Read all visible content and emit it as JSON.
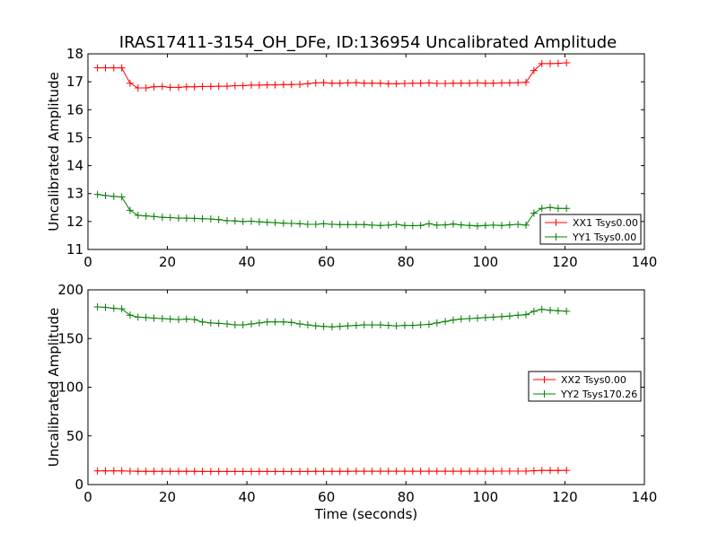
{
  "figure": {
    "title": "IRAS17411-3154_OH_DFe, ID:136954 Uncalibrated Amplitude"
  },
  "chart_data": [
    {
      "type": "line",
      "title": "IRAS17411-3154_OH_DFe, ID:136954 Uncalibrated Amplitude",
      "xlabel": "",
      "ylabel": "Uncalibrated Amplitude",
      "xlim": [
        0,
        140
      ],
      "ylim": [
        11,
        18
      ],
      "xticks": [
        0,
        20,
        40,
        60,
        80,
        100,
        120,
        140
      ],
      "yticks": [
        11,
        12,
        13,
        14,
        15,
        16,
        17,
        18
      ],
      "grid": false,
      "legend": "lower-right",
      "x": [
        2.4,
        4.4,
        6.5,
        8.5,
        10.6,
        12.6,
        14.6,
        16.6,
        18.7,
        20.7,
        22.8,
        24.8,
        26.8,
        28.8,
        30.9,
        32.9,
        35.0,
        37.0,
        39.0,
        41.1,
        43.1,
        45.1,
        47.1,
        49.2,
        51.2,
        53.3,
        55.3,
        57.3,
        59.3,
        61.4,
        63.4,
        65.4,
        67.5,
        69.5,
        71.5,
        73.6,
        75.6,
        77.6,
        79.7,
        81.7,
        83.7,
        85.8,
        87.8,
        89.9,
        91.9,
        93.9,
        96.0,
        98.0,
        100.0,
        102.0,
        104.1,
        106.1,
        108.2,
        110.2,
        112.2,
        114.2,
        116.3,
        118.3,
        120.4
      ],
      "series": [
        {
          "name": "XX1 Tsys0.00",
          "color": "#ff0000",
          "values": [
            17.5,
            17.5,
            17.5,
            17.5,
            16.95,
            16.78,
            16.78,
            16.82,
            16.83,
            16.8,
            16.8,
            16.82,
            16.82,
            16.83,
            16.83,
            16.84,
            16.84,
            16.86,
            16.86,
            16.88,
            16.88,
            16.89,
            16.89,
            16.9,
            16.9,
            16.91,
            16.93,
            16.96,
            16.97,
            16.95,
            16.95,
            16.96,
            16.97,
            16.95,
            16.95,
            16.95,
            16.93,
            16.93,
            16.94,
            16.95,
            16.95,
            16.96,
            16.94,
            16.94,
            16.95,
            16.95,
            16.95,
            16.96,
            16.95,
            16.95,
            16.96,
            16.96,
            16.97,
            16.98,
            17.4,
            17.65,
            17.65,
            17.66,
            17.68
          ]
        },
        {
          "name": "YY1 Tsys0.00",
          "color": "#008000",
          "values": [
            12.97,
            12.93,
            12.9,
            12.88,
            12.4,
            12.22,
            12.2,
            12.18,
            12.15,
            12.14,
            12.12,
            12.12,
            12.11,
            12.1,
            12.09,
            12.07,
            12.03,
            12.02,
            12.0,
            12.01,
            11.99,
            11.97,
            11.96,
            11.94,
            11.93,
            11.92,
            11.9,
            11.9,
            11.92,
            11.9,
            11.89,
            11.89,
            11.89,
            11.89,
            11.87,
            11.86,
            11.87,
            11.9,
            11.86,
            11.85,
            11.86,
            11.92,
            11.87,
            11.88,
            11.91,
            11.88,
            11.86,
            11.84,
            11.86,
            11.87,
            11.86,
            11.88,
            11.9,
            11.87,
            12.3,
            12.47,
            12.5,
            12.47,
            12.47
          ]
        }
      ]
    },
    {
      "type": "line",
      "title": "",
      "xlabel": "Time (seconds)",
      "ylabel": "Uncalibrated Amplitude",
      "xlim": [
        0,
        140
      ],
      "ylim": [
        0,
        200
      ],
      "xticks": [
        0,
        20,
        40,
        60,
        80,
        100,
        120,
        140
      ],
      "yticks": [
        0,
        50,
        100,
        150,
        200
      ],
      "grid": false,
      "legend": "center-right",
      "x": [
        2.4,
        4.4,
        6.5,
        8.5,
        10.6,
        12.6,
        14.6,
        16.6,
        18.7,
        20.7,
        22.8,
        24.8,
        26.8,
        28.8,
        30.9,
        32.9,
        35.0,
        37.0,
        39.0,
        41.1,
        43.1,
        45.1,
        47.1,
        49.2,
        51.2,
        53.3,
        55.3,
        57.3,
        59.3,
        61.4,
        63.4,
        65.4,
        67.5,
        69.5,
        71.5,
        73.6,
        75.6,
        77.6,
        79.7,
        81.7,
        83.7,
        85.8,
        87.8,
        89.9,
        91.9,
        93.9,
        96.0,
        98.0,
        100.0,
        102.0,
        104.1,
        106.1,
        108.2,
        110.2,
        112.2,
        114.2,
        116.3,
        118.3,
        120.4
      ],
      "series": [
        {
          "name": "XX2 Tsys0.00",
          "color": "#ff0000",
          "values": [
            14.0,
            14.0,
            14.0,
            14.0,
            13.8,
            13.6,
            13.6,
            13.6,
            13.6,
            13.6,
            13.6,
            13.6,
            13.6,
            13.5,
            13.5,
            13.5,
            13.5,
            13.5,
            13.5,
            13.5,
            13.5,
            13.5,
            13.5,
            13.5,
            13.5,
            13.5,
            13.5,
            13.6,
            13.6,
            13.6,
            13.6,
            13.6,
            13.7,
            13.7,
            13.7,
            13.7,
            13.7,
            13.7,
            13.7,
            13.7,
            13.7,
            13.7,
            13.7,
            13.7,
            13.7,
            13.7,
            13.7,
            13.7,
            13.7,
            13.7,
            13.8,
            13.8,
            13.8,
            13.8,
            14.2,
            14.5,
            14.5,
            14.5,
            14.6
          ]
        },
        {
          "name": "YY2 Tsys170.26",
          "color": "#008000",
          "values": [
            182.5,
            182,
            181,
            180.5,
            174,
            172,
            171.5,
            171,
            170.5,
            170,
            169.5,
            170,
            169.5,
            167,
            166,
            165.5,
            165,
            164,
            164,
            165,
            166,
            167,
            167,
            167,
            166.5,
            165,
            164,
            163,
            162.5,
            162,
            162.5,
            163,
            163.5,
            164,
            164,
            164,
            163.5,
            163,
            163.5,
            163.5,
            164,
            164.5,
            166,
            167.5,
            169,
            170,
            170.5,
            171,
            171.5,
            172,
            172.5,
            173,
            174,
            174.5,
            178,
            180,
            179,
            178.5,
            178
          ]
        }
      ]
    }
  ]
}
